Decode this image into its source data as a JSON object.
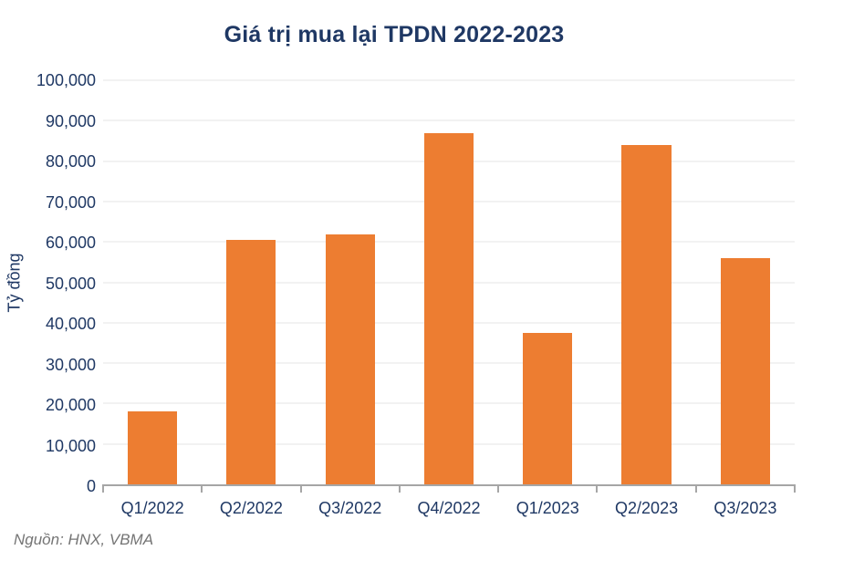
{
  "title": "Giá trị mua lại TPDN 2022-2023",
  "source": "Nguồn: HNX, VBMA",
  "colors": {
    "bar": "#ED7D31",
    "label_navy": "#1F3864",
    "gridline": "#F2F2F2",
    "axis": "#A6A6A6",
    "source_text": "#757575"
  },
  "chart_data": {
    "type": "bar",
    "title": "Giá trị mua lại TPDN 2022-2023",
    "categories": [
      "Q1/2022",
      "Q2/2022",
      "Q3/2022",
      "Q4/2022",
      "Q1/2023",
      "Q2/2023",
      "Q3/2023"
    ],
    "values": [
      18000,
      60500,
      61800,
      86800,
      37500,
      84000,
      56000
    ],
    "xlabel": "",
    "ylabel": "Tỷ đồng",
    "ylim": [
      0,
      100000
    ],
    "ytick_step": 10000,
    "ytick_format": "thousands-comma",
    "grid": true,
    "legend": false,
    "source": "Nguồn: HNX, VBMA"
  }
}
